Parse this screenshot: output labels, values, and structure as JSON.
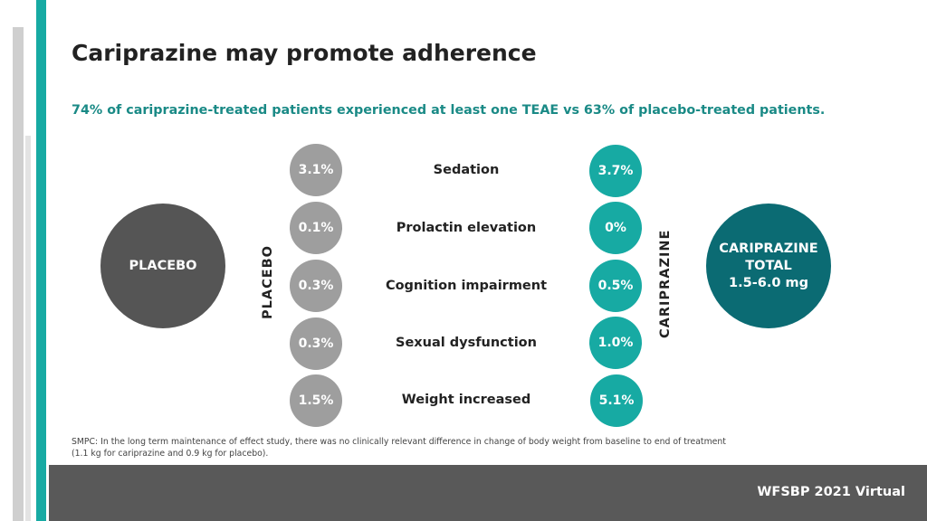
{
  "title": "Cariprazine may promote adherence",
  "subtitle": "74% of cariprazine-treated patients experienced at least one TEAE vs 63% of placebo-treated patients.",
  "groups": {
    "placebo_circle": "PLACEBO",
    "placebo_vertical": "PLACEBO",
    "cariprazine_vertical": "CARIPRAZINE",
    "cariprazine_circle_line1": "CARIPRAZINE",
    "cariprazine_circle_line2": "TOTAL",
    "cariprazine_circle_line3": "1.5-6.0 mg"
  },
  "rows": [
    {
      "condition": "Sedation",
      "placebo": "3.1%",
      "cariprazine": "3.7%"
    },
    {
      "condition": "Prolactin elevation",
      "placebo": "0.1%",
      "cariprazine": "0%"
    },
    {
      "condition": "Cognition impairment",
      "placebo": "0.3%",
      "cariprazine": "0.5%"
    },
    {
      "condition": "Sexual dysfunction",
      "placebo": "0.3%",
      "cariprazine": "1.0%"
    },
    {
      "condition": "Weight increased",
      "placebo": "1.5%",
      "cariprazine": "5.1%"
    }
  ],
  "footnote": {
    "line1": "SMPC: In the long term maintenance of effect study, there was no clinically relevant difference in change of body weight from baseline to end of treatment",
    "line2": "(1.1 kg for cariprazine and 0.9 kg for placebo)."
  },
  "footer": "WFSBP 2021 Virtual",
  "colors": {
    "accent_teal": "#17aaa3",
    "dark_teal": "#0b6b73",
    "placebo_grey": "#9e9e9e",
    "placebo_dark": "#555555",
    "subtitle_teal": "#1a8a86"
  }
}
